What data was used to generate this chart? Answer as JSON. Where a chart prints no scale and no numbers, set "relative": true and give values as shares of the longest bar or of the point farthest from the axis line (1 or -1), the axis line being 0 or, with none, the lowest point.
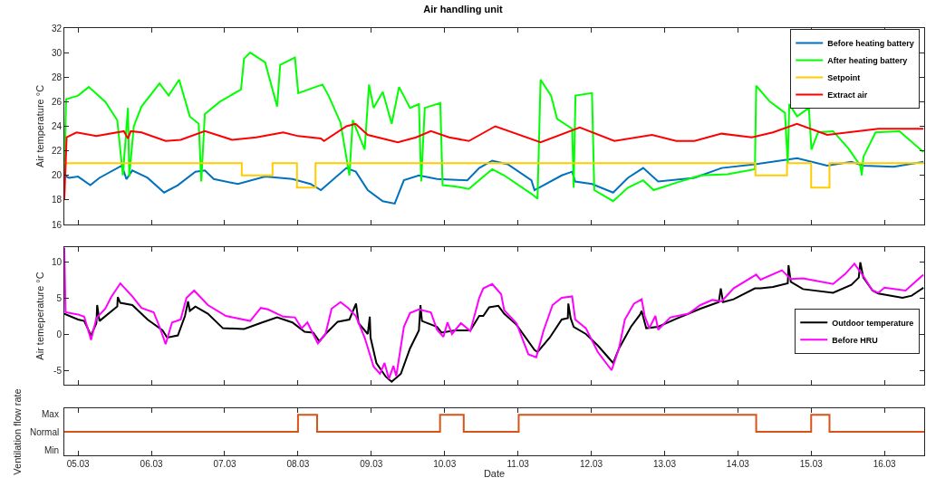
{
  "chart_data": [
    {
      "type": "line",
      "title": "Air handling unit",
      "ylabel": "Air temperature °C",
      "xlim": [
        "--03-04T19:30",
        "--03-16T13:00"
      ],
      "ylim": [
        16,
        32
      ],
      "yticks": [
        16,
        18,
        20,
        22,
        24,
        26,
        28,
        30,
        32
      ],
      "xticks": [
        {
          "value": "--03-05",
          "label": "05.03"
        },
        {
          "value": "--03-06",
          "label": "06.03"
        },
        {
          "value": "--03-07",
          "label": "07.03"
        },
        {
          "value": "--03-08",
          "label": "08.03"
        },
        {
          "value": "--03-09",
          "label": "09.03"
        },
        {
          "value": "--03-10",
          "label": "10.03"
        },
        {
          "value": "--03-11",
          "label": "11.03"
        },
        {
          "value": "--03-12",
          "label": "12.03"
        },
        {
          "value": "--03-13",
          "label": "13.03"
        },
        {
          "value": "--03-14",
          "label": "14.03"
        },
        {
          "value": "--03-15",
          "label": "15.03"
        },
        {
          "value": "--03-16",
          "label": "16.03"
        }
      ],
      "tick_labels": "y",
      "grid": false,
      "legend": "top right",
      "series": [
        {
          "name": "Before heating battery",
          "color": "#0072bd",
          "x": [
            "--03-04T19:30",
            "--03-04T21:00",
            "--03-05T00:00",
            "--03-05T04:00",
            "--03-05T07:00",
            "--03-05T14:20",
            "--03-05T15:50",
            "--03-05T17:45",
            "--03-05T22:45",
            "--03-06T04:10",
            "--03-06T08:40",
            "--03-06T14:25",
            "--03-06T17:30",
            "--03-06T20:25",
            "--03-07T04:20",
            "--03-07T13:15",
            "--03-07T22:10",
            "--03-08T04:05",
            "--03-08T07:30",
            "--03-08T15:50",
            "--03-08T18:55",
            "--03-08T22:50",
            "--03-09T03:45",
            "--03-09T07:40",
            "--03-09T10:40",
            "--03-09T15:35",
            "--03-09T21:30",
            "--03-10T07:25",
            "--03-10T11:20",
            "--03-10T15:35",
            "--03-10T20:40",
            "--03-11T04:25",
            "--03-11T05:25",
            "--03-11T14:20",
            "--03-11T17:45",
            "--03-11T18:45",
            "--03-12T00:15",
            "--03-12T07:10",
            "--03-12T12:00",
            "--03-12T17:00",
            "--03-12T21:55",
            "--03-13T09:45",
            "--03-13T18:40",
            "--03-14T05:35",
            "--03-14T19:25",
            "--03-15T05:15",
            "--03-15T13:10",
            "--03-15T17:05",
            "--03-16T03:00",
            "--03-16T12:45"
          ],
          "values": [
            20.0,
            19.8,
            19.9,
            19.2,
            19.8,
            20.8,
            19.7,
            20.4,
            19.8,
            18.6,
            19.2,
            20.3,
            20.4,
            19.7,
            19.3,
            19.9,
            19.7,
            19.3,
            18.8,
            20.6,
            20.3,
            18.8,
            17.9,
            17.7,
            19.6,
            20.0,
            19.7,
            19.6,
            20.6,
            21.2,
            20.9,
            19.6,
            18.8,
            20.0,
            20.3,
            19.5,
            19.3,
            18.6,
            19.8,
            20.6,
            19.5,
            19.8,
            20.6,
            20.9,
            21.4,
            20.8,
            21.1,
            20.8,
            20.7,
            21.1
          ]
        },
        {
          "name": "After heating battery",
          "color": "#00ff00",
          "x": [
            "--03-04T19:30",
            "--03-04T20:05",
            "--03-05T00:00",
            "--03-05T03:30",
            "--03-05T08:55",
            "--03-05T12:50",
            "--03-05T14:40",
            "--03-05T16:20",
            "--03-05T16:45",
            "--03-05T18:15",
            "--03-05T20:45",
            "--03-06T02:40",
            "--03-06T05:40",
            "--03-06T09:05",
            "--03-06T12:35",
            "--03-06T15:30",
            "--03-06T16:20",
            "--03-06T17:30",
            "--03-06T22:25",
            "--03-07T05:20",
            "--03-07T06:20",
            "--03-07T08:20",
            "--03-07T13:15",
            "--03-07T17:10",
            "--03-07T18:10",
            "--03-07T23:00",
            "--03-08T00:05",
            "--03-08T08:00",
            "--03-08T10:00",
            "--03-08T13:55",
            "--03-08T16:50",
            "--03-08T17:55",
            "--03-08T21:50",
            "--03-08T23:15",
            "--03-09T00:45",
            "--03-09T03:45",
            "--03-09T06:40",
            "--03-09T09:05",
            "--03-09T12:40",
            "--03-09T15:35",
            "--03-09T16:20",
            "--03-09T17:30",
            "--03-09T22:35",
            "--03-09T23:20",
            "--03-10T03:25",
            "--03-10T07:55",
            "--03-10T15:35",
            "--03-10T19:30",
            "--03-11T04:25",
            "--03-11T06:25",
            "--03-11T07:25",
            "--03-11T10:50",
            "--03-11T12:50",
            "--03-11T17:45",
            "--03-11T18:15",
            "--03-11T18:50",
            "--03-12T00:15",
            "--03-12T01:00",
            "--03-12T07:10",
            "--03-12T12:00",
            "--03-12T17:00",
            "--03-12T20:25",
            "--03-13T03:50",
            "--03-13T11:45",
            "--03-13T20:35",
            "--03-14T05:35",
            "--03-14T06:00",
            "--03-14T10:30",
            "--03-14T15:25",
            "--03-14T16:20",
            "--03-14T16:50",
            "--03-14T19:25",
            "--03-14T23:15",
            "--03-15T00:05",
            "--03-15T02:15",
            "--03-15T07:10",
            "--03-15T12:10",
            "--03-15T16:05",
            "--03-15T16:35",
            "--03-15T17:05",
            "--03-15T21:05",
            "--03-16T04:55",
            "--03-16T12:45"
          ],
          "values": [
            20.0,
            26.2,
            26.5,
            27.2,
            26.0,
            24.5,
            20.0,
            25.5,
            19.9,
            24.0,
            25.6,
            27.5,
            26.5,
            27.8,
            24.8,
            24.2,
            19.5,
            25.0,
            26.0,
            27.0,
            29.5,
            30.0,
            29.2,
            25.6,
            29.0,
            29.6,
            26.7,
            27.4,
            26.5,
            24.3,
            20.0,
            24.5,
            22.1,
            27.4,
            25.5,
            26.8,
            24.2,
            27.2,
            25.5,
            25.8,
            19.5,
            25.5,
            25.9,
            19.2,
            19.1,
            18.9,
            20.5,
            20.0,
            18.5,
            18.1,
            27.8,
            26.5,
            24.6,
            23.8,
            19.0,
            26.5,
            26.7,
            18.8,
            17.9,
            19.0,
            19.6,
            18.8,
            19.4,
            20.0,
            20.1,
            20.5,
            27.3,
            26.0,
            25.1,
            21.0,
            25.8,
            24.8,
            25.5,
            22.1,
            23.5,
            23.6,
            22.2,
            20.8,
            20.0,
            21.5,
            23.5,
            23.6,
            21.9
          ]
        },
        {
          "name": "Setpoint",
          "type": "step",
          "color": "#ffcc00",
          "x": [
            "--03-04T19:30",
            "--03-07T05:35",
            "--03-07T15:40",
            "--03-07T23:40",
            "--03-08T05:45",
            "--03-14T05:45",
            "--03-14T16:05",
            "--03-15T00:00",
            "--03-15T06:00",
            "--03-16T13:00"
          ],
          "values": [
            21,
            20,
            21,
            19,
            21,
            20,
            21,
            19,
            21,
            21
          ]
        },
        {
          "name": "Extract air",
          "color": "#ff0000",
          "x": [
            "--03-04T19:30",
            "--03-04T20:15",
            "--03-04T23:30",
            "--03-05T06:00",
            "--03-05T15:00",
            "--03-05T16:20",
            "--03-05T17:15",
            "--03-05T20:45",
            "--03-06T04:40",
            "--03-06T09:35",
            "--03-06T17:30",
            "--03-07T02:25",
            "--03-07T10:20",
            "--03-07T19:10",
            "--03-08T00:05",
            "--03-08T07:30",
            "--03-08T08:30",
            "--03-08T15:50",
            "--03-08T18:50",
            "--03-08T22:50",
            "--03-09T08:40",
            "--03-09T14:40",
            "--03-09T19:30",
            "--03-10T01:30",
            "--03-10T07:55",
            "--03-10T16:35",
            "--03-11T07:25",
            "--03-11T20:15",
            "--03-12T07:35",
            "--03-12T19:55",
            "--03-13T03:50",
            "--03-13T09:45",
            "--03-13T18:40",
            "--03-14T04:35",
            "--03-14T11:30",
            "--03-14T19:20",
            "--03-15T05:15",
            "--03-15T22:00",
            "--03-16T12:45"
          ],
          "values": [
            18.0,
            23.1,
            23.5,
            23.2,
            23.6,
            23.0,
            23.6,
            23.5,
            22.8,
            22.9,
            23.6,
            22.9,
            23.1,
            23.5,
            23.2,
            23.0,
            22.8,
            24.0,
            24.2,
            23.3,
            22.7,
            23.1,
            23.6,
            23.1,
            22.8,
            24.0,
            22.7,
            23.9,
            22.8,
            23.3,
            22.8,
            22.8,
            23.4,
            23.1,
            23.5,
            24.2,
            23.3,
            23.8,
            23.8
          ]
        }
      ]
    },
    {
      "type": "line",
      "ylabel": "Air temeperature °C",
      "xlim": [
        "--03-04T19:30",
        "--03-16T13:00"
      ],
      "ylim": [
        -7,
        12
      ],
      "yticks": [
        -5,
        0,
        5,
        10
      ],
      "xticks": [
        {
          "value": "--03-05",
          "label": "05.03"
        },
        {
          "value": "--03-06",
          "label": "06.03"
        },
        {
          "value": "--03-07",
          "label": "07.03"
        },
        {
          "value": "--03-08",
          "label": "08.03"
        },
        {
          "value": "--03-09",
          "label": "09.03"
        },
        {
          "value": "--03-10",
          "label": "10.03"
        },
        {
          "value": "--03-11",
          "label": "11.03"
        },
        {
          "value": "--03-12",
          "label": "12.03"
        },
        {
          "value": "--03-13",
          "label": "13.03"
        },
        {
          "value": "--03-14",
          "label": "14.03"
        },
        {
          "value": "--03-15",
          "label": "15.03"
        },
        {
          "value": "--03-16",
          "label": "16.03"
        }
      ],
      "tick_labels": "y",
      "grid": false,
      "legend": "right",
      "series": [
        {
          "name": "Outdoor temperature",
          "color": "#000000",
          "x": [
            "--03-04T19:30",
            "--03-05T00:00",
            "--03-05T02:00",
            "--03-05T04:15",
            "--03-05T06:00",
            "--03-05T06:15",
            "--03-05T07:00",
            "--03-05T12:50",
            "--03-05T13:00",
            "--03-05T13:50",
            "--03-05T17:45",
            "--03-05T22:45",
            "--03-06T03:40",
            "--03-06T05:10",
            "--03-06T08:40",
            "--03-06T11:00",
            "--03-06T12:00",
            "--03-06T12:35",
            "--03-06T14:25",
            "--03-06T18:30",
            "--03-06T23:25",
            "--03-07T06:20",
            "--03-07T12:15",
            "--03-07T17:10",
            "--03-07T22:10",
            "--03-08T02:10",
            "--03-08T05:00",
            "--03-08T07:00",
            "--03-08T09:00",
            "--03-08T13:00",
            "--03-08T16:50",
            "--03-08T19:00",
            "--03-08T19:50",
            "--03-08T22:50",
            "--03-08T23:30",
            "--03-08T23:45",
            "--03-09T01:40",
            "--03-09T04:45",
            "--03-09T06:40",
            "--03-09T09:40",
            "--03-09T12:40",
            "--03-09T15:35",
            "--03-09T16:05",
            "--03-09T16:35",
            "--03-09T21:30",
            "--03-09T23:00",
            "--03-10T03:25",
            "--03-10T08:25",
            "--03-10T11:20",
            "--03-10T12:40",
            "--03-10T14:35",
            "--03-10T17:35",
            "--03-10T19:30",
            "--03-10T23:30",
            "--03-11T05:25",
            "--03-11T06:25",
            "--03-11T10:25",
            "--03-11T14:20",
            "--03-11T16:20",
            "--03-11T16:30",
            "--03-11T17:15",
            "--03-11T18:15",
            "--03-11T22:15",
            "--03-12T02:10",
            "--03-12T07:10",
            "--03-12T09:05",
            "--03-12T13:00",
            "--03-12T16:00",
            "--03-12T16:30",
            "--03-12T18:00",
            "--03-12T21:55",
            "--03-13T03:50",
            "--03-13T11:45",
            "--03-13T17:45",
            "--03-13T18:25",
            "--03-13T19:10",
            "--03-13T22:35",
            "--03-14T05:35",
            "--03-14T07:25",
            "--03-14T11:30",
            "--03-14T16:20",
            "--03-14T16:35",
            "--03-14T17:20",
            "--03-14T21:20",
            "--03-15T07:10",
            "--03-15T13:10",
            "--03-15T15:35",
            "--03-15T16:05",
            "--03-15T17:05",
            "--03-15T20:05",
            "--03-15T22:00",
            "--03-16T05:55",
            "--03-16T08:55",
            "--03-16T12:45"
          ],
          "values": [
            2.8,
            2.0,
            1.8,
            -0.2,
            1.5,
            4.0,
            1.8,
            3.8,
            5.1,
            4.3,
            4.0,
            2.0,
            0.5,
            -0.5,
            -0.2,
            2.5,
            4.5,
            3.2,
            3.8,
            2.8,
            0.8,
            0.7,
            1.6,
            2.3,
            1.6,
            0.3,
            0.2,
            -1.0,
            0.0,
            1.7,
            2.0,
            4.2,
            1.5,
            0.0,
            2.4,
            -0.5,
            -4.0,
            -5.9,
            -6.6,
            -5.5,
            -2.0,
            0.5,
            4.0,
            1.8,
            1.0,
            0.2,
            0.5,
            0.5,
            2.5,
            2.5,
            3.7,
            3.9,
            2.8,
            1.3,
            -2.2,
            -2.5,
            -0.5,
            2.0,
            2.2,
            4.2,
            2.2,
            1.0,
            0.0,
            -1.6,
            -4.0,
            -2.0,
            1.0,
            2.7,
            3.2,
            0.8,
            1.0,
            2.1,
            3.5,
            4.4,
            6.3,
            4.4,
            4.8,
            6.3,
            6.3,
            6.5,
            7.0,
            9.5,
            7.2,
            6.2,
            5.7,
            6.8,
            7.8,
            9.9,
            7.8,
            6.0,
            5.6,
            5.0,
            5.3,
            6.4
          ]
        },
        {
          "name": "Before HRU",
          "color": "#ff00ff",
          "x": [
            "--03-04T19:30",
            "--03-04T19:55",
            "--03-05T00:00",
            "--03-05T02:00",
            "--03-05T04:15",
            "--03-05T06:00",
            "--03-05T08:55",
            "--03-05T10:50",
            "--03-05T13:50",
            "--03-05T17:45",
            "--03-05T20:45",
            "--03-06T00:45",
            "--03-06T02:40",
            "--03-06T04:40",
            "--03-06T06:45",
            "--03-06T09:35",
            "--03-06T11:30",
            "--03-06T14:00",
            "--03-06T18:30",
            "--03-07T00:25",
            "--03-07T08:20",
            "--03-07T11:50",
            "--03-07T14:10",
            "--03-07T19:10",
            "--03-07T23:00",
            "--03-08T01:10",
            "--03-08T03:05",
            "--03-08T06:30",
            "--03-08T09:00",
            "--03-08T11:00",
            "--03-08T13:55",
            "--03-08T16:25",
            "--03-08T18:55",
            "--03-08T21:50",
            "--03-09T00:45",
            "--03-09T02:50",
            "--03-09T04:20",
            "--03-09T05:45",
            "--03-09T07:15",
            "--03-09T08:10",
            "--03-09T10:40",
            "--03-09T12:40",
            "--03-09T15:35",
            "--03-09T19:30",
            "--03-09T21:30",
            "--03-09T23:35",
            "--03-10T00:55",
            "--03-10T02:25",
            "--03-10T05:20",
            "--03-10T08:25",
            "--03-10T11:20",
            "--03-10T12:40",
            "--03-10T15:35",
            "--03-10T18:30",
            "--03-10T19:30",
            "--03-10T23:30",
            "--03-11T03:25",
            "--03-11T06:00",
            "--03-11T08:25",
            "--03-11T11:20",
            "--03-11T14:20",
            "--03-11T17:45",
            "--03-11T18:45",
            "--03-11T22:15",
            "--03-12T02:10",
            "--03-12T06:40",
            "--03-12T09:05",
            "--03-12T11:00",
            "--03-12T14:00",
            "--03-12T16:30",
            "--03-12T17:30",
            "--03-12T19:00",
            "--03-12T21:00",
            "--03-12T21:55",
            "--03-13T01:55",
            "--03-13T07:50",
            "--03-13T11:45",
            "--03-13T15:40",
            "--03-13T18:40",
            "--03-13T22:35",
            "--03-14T06:00",
            "--03-14T07:25",
            "--03-14T14:25",
            "--03-14T17:20",
            "--03-14T21:20",
            "--03-15T07:10",
            "--03-15T11:10",
            "--03-15T14:10",
            "--03-15T17:05",
            "--03-15T20:05",
            "--03-15T22:00",
            "--03-16T00:00",
            "--03-16T06:55",
            "--03-16T12:45"
          ],
          "values": [
            11.9,
            3.0,
            2.7,
            2.4,
            -0.8,
            2.2,
            3.5,
            5.1,
            7.0,
            5.2,
            3.6,
            3.0,
            1.0,
            -1.4,
            1.6,
            2.0,
            5.0,
            6.0,
            4.0,
            2.5,
            1.8,
            3.6,
            3.4,
            2.4,
            2.3,
            0.8,
            1.6,
            -1.3,
            0.0,
            3.5,
            4.4,
            3.6,
            2.5,
            -0.5,
            -4.5,
            -5.5,
            -4.0,
            -6.2,
            -4.4,
            -5.8,
            1.0,
            2.9,
            3.4,
            3.0,
            0.6,
            -0.4,
            1.6,
            0.0,
            1.5,
            0.4,
            5.0,
            6.3,
            6.9,
            5.5,
            3.3,
            1.5,
            -2.8,
            -3.2,
            0.5,
            4.0,
            5.0,
            5.2,
            2.0,
            0.8,
            -2.5,
            -5.0,
            -2.0,
            2.0,
            4.2,
            4.8,
            2.5,
            0.8,
            2.5,
            0.6,
            2.3,
            2.8,
            4.0,
            4.7,
            4.5,
            6.3,
            8.2,
            7.5,
            8.8,
            7.6,
            7.7,
            6.9,
            8.3,
            9.7,
            8.0,
            6.0,
            5.7,
            6.4,
            6.0,
            8.2
          ]
        }
      ]
    },
    {
      "type": "step",
      "ylabel": "Ventilation flow rate",
      "xlabel": "Date",
      "xlim": [
        "--03-04T19:30",
        "--03-16T13:00"
      ],
      "relative": true,
      "annotations": [
        "Min",
        "Normal",
        "Max"
      ],
      "xticks": [
        {
          "value": "--03-05",
          "label": "05.03"
        },
        {
          "value": "--03-06",
          "label": "06.03"
        },
        {
          "value": "--03-07",
          "label": "07.03"
        },
        {
          "value": "--03-08",
          "label": "08.03"
        },
        {
          "value": "--03-09",
          "label": "09.03"
        },
        {
          "value": "--03-10",
          "label": "10.03"
        },
        {
          "value": "--03-11",
          "label": "11.03"
        },
        {
          "value": "--03-12",
          "label": "12.03"
        },
        {
          "value": "--03-13",
          "label": "13.03"
        },
        {
          "value": "--03-14",
          "label": "14.03"
        },
        {
          "value": "--03-15",
          "label": "15.03"
        },
        {
          "value": "--03-16",
          "label": "16.03"
        }
      ],
      "grid": false,
      "series": [
        {
          "color": "#d95319",
          "x": [
            "--03-04T19:30",
            "--03-08T00:00",
            "--03-08T06:15",
            "--03-09T22:30",
            "--03-10T06:15",
            "--03-11T00:15",
            "--03-14T06:00",
            "--03-15T00:00",
            "--03-15T06:00",
            "--03-16T13:00"
          ],
          "values": [
            0.58,
            1,
            0.58,
            1,
            0.58,
            1,
            0.58,
            1,
            0.58,
            0.58
          ]
        }
      ]
    }
  ]
}
